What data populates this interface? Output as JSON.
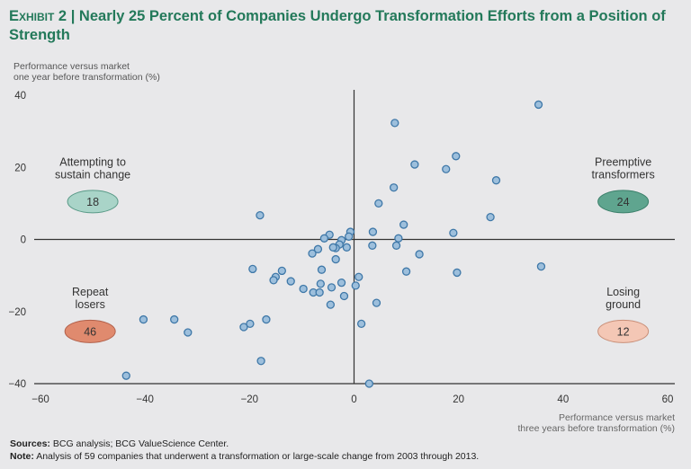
{
  "title": {
    "exhibit": "Exhibit 2",
    "separator": "|",
    "text": "Nearly 25 Percent of Companies Undergo Transformation Efforts from a Position of Strength"
  },
  "footer": {
    "sources_label": "Sources:",
    "sources_text": "BCG analysis; BCG ValueScience Center.",
    "note_label": "Note:",
    "note_text": "Analysis of 59 companies that underwent a transformation or large-scale change from 2003 through 2013."
  },
  "chart_data": {
    "type": "scatter",
    "title": "Nearly 25 Percent of Companies Undergo Transformation Efforts from a Position of Strength",
    "xlabel_lines": [
      "Performance versus market",
      "three years before transformation (%)"
    ],
    "ylabel_lines": [
      "Performance versus market",
      "one year before transformation (%)"
    ],
    "xlim": [
      -60,
      60
    ],
    "ylim": [
      -40,
      40
    ],
    "xticks": [
      "−60",
      "−40",
      "−20",
      "0",
      "20",
      "40",
      "60"
    ],
    "yticks": [
      "40",
      "20",
      "0",
      "−20",
      "−40"
    ],
    "xtick_values": [
      -60,
      -40,
      -20,
      0,
      20,
      40,
      60
    ],
    "ytick_values": [
      40,
      20,
      0,
      -20,
      -40
    ],
    "grid": false,
    "point_color": "#9dbfdc",
    "point_stroke": "#3f78a8",
    "quadrants": [
      {
        "lines": [
          "Attempting to",
          "sustain change"
        ],
        "count": "18",
        "color": "#a9d4c8",
        "stroke": "#5a9a88",
        "position": "top-left",
        "cx": -50,
        "cy": 10.5
      },
      {
        "lines": [
          "Preemptive",
          "transformers"
        ],
        "count": "24",
        "color": "#5fa58f",
        "stroke": "#3b7f6a",
        "position": "top-right",
        "cx": 51.5,
        "cy": 10.5
      },
      {
        "lines": [
          "Repeat",
          "losers"
        ],
        "count": "46",
        "color": "#e08a6e",
        "stroke": "#b1604a",
        "position": "bottom-left",
        "cx": -50.5,
        "cy": -25.5
      },
      {
        "lines": [
          "Losing",
          "ground"
        ],
        "count": "12",
        "color": "#f4c7b5",
        "stroke": "#c98f78",
        "position": "bottom-right",
        "cx": 51.5,
        "cy": -25.5
      }
    ],
    "points": [
      [
        7.8,
        32.3
      ],
      [
        35.3,
        37.4
      ],
      [
        11.6,
        20.8
      ],
      [
        17.6,
        19.5
      ],
      [
        19.5,
        23.1
      ],
      [
        27.2,
        16.4
      ],
      [
        7.6,
        14.4
      ],
      [
        4.7,
        10
      ],
      [
        26.1,
        6.2
      ],
      [
        -18,
        6.7
      ],
      [
        9.5,
        4.1
      ],
      [
        19,
        1.8
      ],
      [
        3.6,
        2.1
      ],
      [
        8.5,
        0.3
      ],
      [
        -0.7,
        2.1
      ],
      [
        -4.7,
        1.3
      ],
      [
        -5.7,
        0.3
      ],
      [
        -2.4,
        -0.2
      ],
      [
        -2.8,
        -1.4
      ],
      [
        -3.5,
        -2.4
      ],
      [
        -1.4,
        -2.2
      ],
      [
        -4,
        -2.2
      ],
      [
        -8,
        -3.9
      ],
      [
        -6.9,
        -2.7
      ],
      [
        3.5,
        -1.7
      ],
      [
        12.5,
        -4.1
      ],
      [
        -3.5,
        -5.5
      ],
      [
        35.8,
        -7.5
      ],
      [
        -19.4,
        -8.2
      ],
      [
        -13.8,
        -8.7
      ],
      [
        -15,
        -10.4
      ],
      [
        -15.4,
        -11.3
      ],
      [
        -12.1,
        -11.6
      ],
      [
        -6.2,
        -8.4
      ],
      [
        10,
        -8.9
      ],
      [
        19.7,
        -9.2
      ],
      [
        0.9,
        -10.4
      ],
      [
        -2.4,
        -12
      ],
      [
        0.3,
        -12.8
      ],
      [
        -9.7,
        -13.7
      ],
      [
        -4.3,
        -13.3
      ],
      [
        -7.8,
        -14.7
      ],
      [
        -6.6,
        -14.7
      ],
      [
        -1.9,
        -15.7
      ],
      [
        -4.5,
        -18.1
      ],
      [
        4.3,
        -17.6
      ],
      [
        -40.3,
        -22.2
      ],
      [
        -34.4,
        -22.2
      ],
      [
        -31.8,
        -25.8
      ],
      [
        -21.1,
        -24.3
      ],
      [
        -19.9,
        -23.4
      ],
      [
        -16.8,
        -22.2
      ],
      [
        1.4,
        -23.4
      ],
      [
        -17.8,
        -33.7
      ],
      [
        -43.6,
        -37.8
      ],
      [
        2.9,
        -40
      ],
      [
        8.1,
        -1.7
      ],
      [
        -1,
        0.8
      ],
      [
        -6.4,
        -12.3
      ]
    ]
  }
}
